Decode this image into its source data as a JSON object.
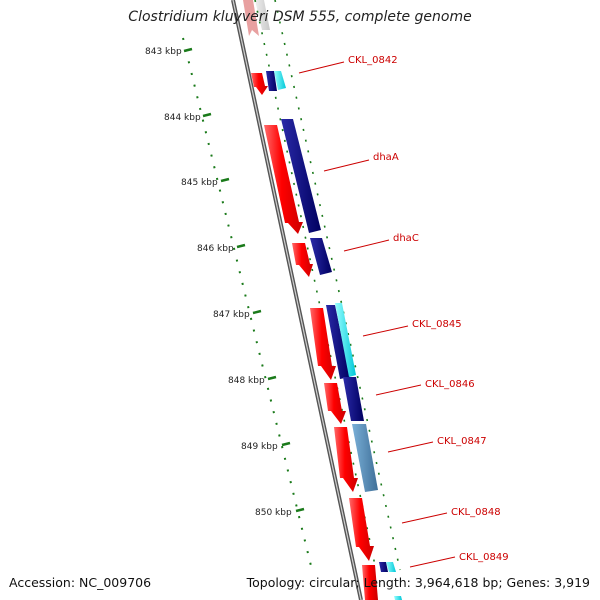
{
  "title": "Clostridium kluyveri DSM 555, complete genome",
  "accession": "Accession: NC_009706",
  "info": "Topology: circular; Length: 3,964,618 bp; Genes: 3,919",
  "colors": {
    "forward_strand": "#ff0000",
    "reverse_strand": "#000080",
    "cyan_feature": "#00e5ee",
    "steel_feature": "#4f86b0",
    "label": "#cc0000",
    "tick": "#1a7a1a",
    "backbone": "#888888"
  },
  "ticks": [
    {
      "kbp": 843,
      "label": "843 kbp"
    },
    {
      "kbp": 844,
      "label": "844 kbp"
    },
    {
      "kbp": 845,
      "label": "845 kbp"
    },
    {
      "kbp": 846,
      "label": "846 kbp"
    },
    {
      "kbp": 847,
      "label": "847 kbp"
    },
    {
      "kbp": 848,
      "label": "848 kbp"
    },
    {
      "kbp": 849,
      "label": "849 kbp"
    },
    {
      "kbp": 850,
      "label": "850 kbp"
    }
  ],
  "genes": [
    {
      "name": "CKL_0842"
    },
    {
      "name": "dhaA"
    },
    {
      "name": "dhaC"
    },
    {
      "name": "CKL_0845"
    },
    {
      "name": "CKL_0846"
    },
    {
      "name": "CKL_0847"
    },
    {
      "name": "CKL_0848"
    },
    {
      "name": "CKL_0849"
    }
  ]
}
